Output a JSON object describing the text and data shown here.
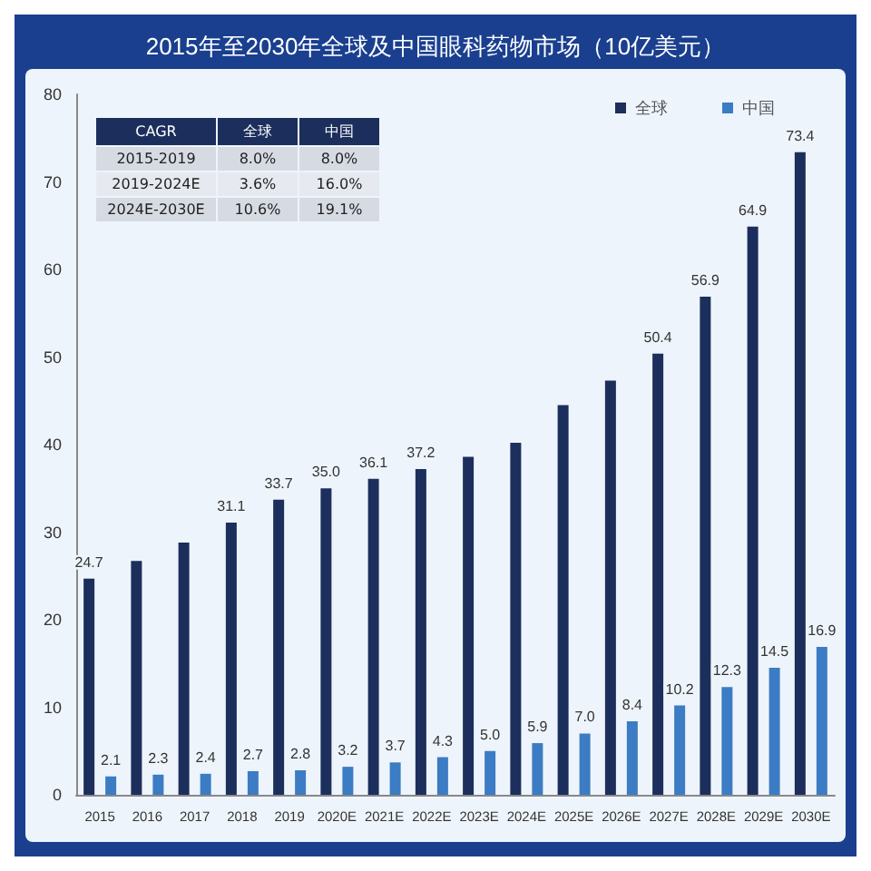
{
  "chart_data": {
    "type": "bar",
    "title": "2015年至2030年全球及中国眼科药物市场（10亿美元）",
    "categories": [
      "2015",
      "2016",
      "2017",
      "2018",
      "2019",
      "2020E",
      "2021E",
      "2022E",
      "2023E",
      "2024E",
      "2025E",
      "2026E",
      "2027E",
      "2028E",
      "2029E",
      "2030E"
    ],
    "series": [
      {
        "name": "全球",
        "color": "#1c2f5c",
        "values": [
          24.7,
          26.7,
          28.8,
          31.1,
          33.7,
          35.0,
          36.1,
          37.2,
          38.6,
          40.2,
          44.5,
          47.3,
          50.4,
          56.9,
          64.9,
          73.4
        ],
        "value_labels": [
          "24.7",
          null,
          null,
          "31.1",
          "33.7",
          "35.0",
          "36.1",
          "37.2",
          null,
          null,
          null,
          null,
          "50.4",
          "56.9",
          "64.9",
          "73.4"
        ]
      },
      {
        "name": "中国",
        "color": "#3b7cc4",
        "values": [
          2.1,
          2.3,
          2.4,
          2.7,
          2.8,
          3.2,
          3.7,
          4.3,
          5.0,
          5.9,
          7.0,
          8.4,
          10.2,
          12.3,
          14.5,
          16.9
        ],
        "value_labels": [
          "2.1",
          "2.3",
          "2.4",
          "2.7",
          "2.8",
          "3.2",
          "3.7",
          "4.3",
          "5.0",
          "5.9",
          "7.0",
          "8.4",
          "10.2",
          "12.3",
          "14.5",
          "16.9"
        ]
      }
    ],
    "ylim": [
      0,
      80
    ],
    "yticks": [
      0,
      10,
      20,
      30,
      40,
      50,
      60,
      70,
      80
    ],
    "grid": false,
    "legend": "top right",
    "annotations": [
      "CAGR",
      "全球",
      "中国",
      "2015-2019",
      "8.0%",
      "8.0%",
      "2019-2024E",
      "3.6%",
      "16.0%",
      "2024E-2030E",
      "10.6%",
      "19.1%"
    ]
  }
}
